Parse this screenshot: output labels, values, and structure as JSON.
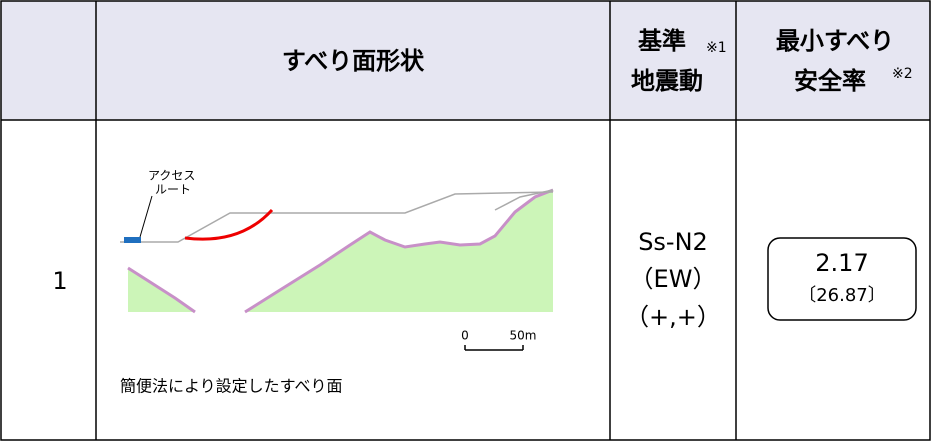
{
  "table": {
    "header": {
      "shape": "すべり面形状",
      "ground_motion": {
        "lines": [
          "基準",
          "地震動"
        ],
        "note": "※1"
      },
      "safety": {
        "lines": [
          "最小すべり",
          "安全率"
        ],
        "note": "※2"
      }
    },
    "rows": [
      {
        "no": "1",
        "figure": {
          "access_label": [
            "アクセス",
            "ルート"
          ],
          "scale": [
            "0",
            "50m"
          ],
          "caption": "簡便法により設定したすべり面"
        },
        "ground_motion": [
          "Ss-N2",
          "（EW）",
          "（+,+）"
        ],
        "safety": {
          "value": "2.17",
          "bracket": "〔26.87〕"
        }
      }
    ]
  }
}
